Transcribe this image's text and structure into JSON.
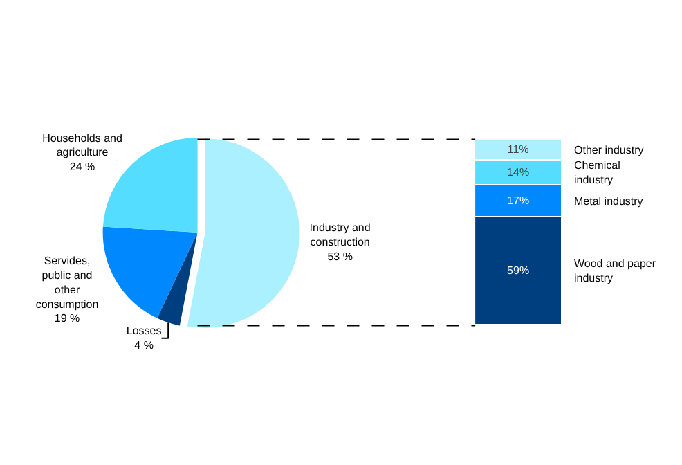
{
  "chart_data": [
    {
      "type": "pie",
      "categories": [
        "Industry and construction",
        "Losses",
        "Servides, public and other consumption",
        "Households and agriculture"
      ],
      "values": [
        53,
        4,
        19,
        24
      ],
      "value_labels": [
        "53 %",
        "4 %",
        "19 %",
        "24 %"
      ],
      "colors": [
        "#aaf0ff",
        "#003f7f",
        "#0088ff",
        "#55ddff"
      ],
      "legend": false
    },
    {
      "type": "bar",
      "stacked": true,
      "categories": [
        null
      ],
      "legend": false,
      "series": [
        {
          "name": "Wood and paper industry",
          "color": "#003f7f",
          "values": [
            59
          ],
          "value_labels": [
            "59%"
          ]
        },
        {
          "name": "Metal industry",
          "color": "#0088ff",
          "values": [
            17
          ],
          "value_labels": [
            "17%"
          ]
        },
        {
          "name": "Chemical industry",
          "color": "#55ddff",
          "values": [
            14
          ],
          "value_labels": [
            "14%"
          ]
        },
        {
          "name": "Other industry",
          "color": "#aaf0ff",
          "values": [
            11
          ],
          "value_labels": [
            "11%"
          ]
        }
      ]
    }
  ]
}
